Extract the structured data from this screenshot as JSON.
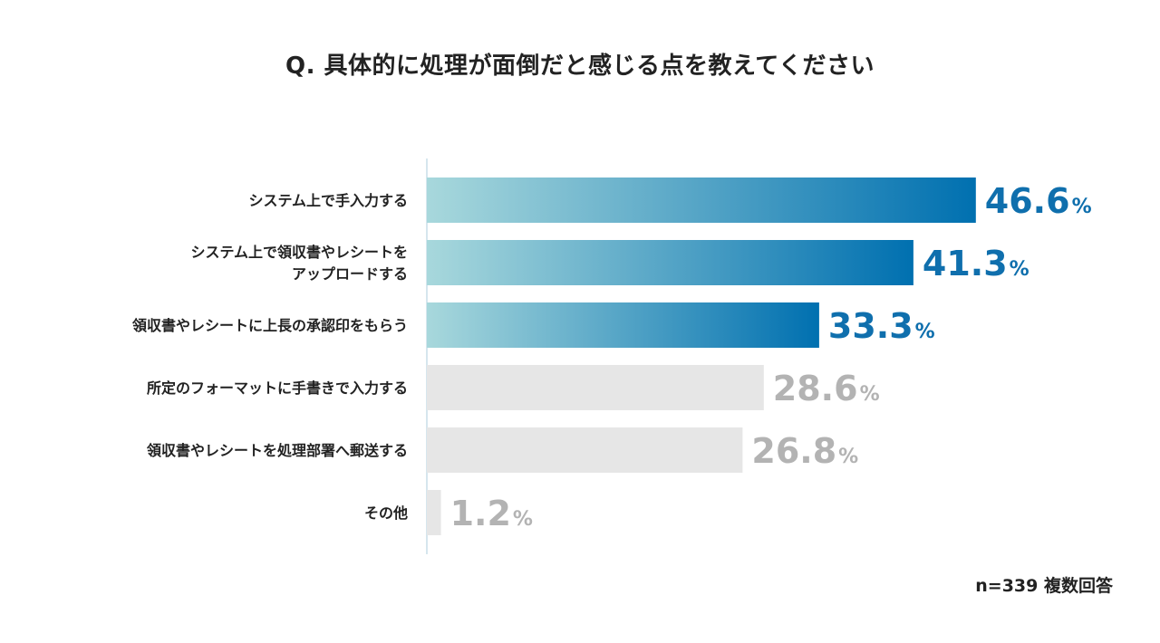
{
  "chart_data": {
    "type": "bar",
    "orientation": "horizontal",
    "title": "Q. 具体的に処理が面倒だと感じる点を教えてください",
    "categories": [
      [
        "システム上で手入力する"
      ],
      [
        "システム上で領収書やレシートを",
        "アップロードする"
      ],
      [
        "領収書やレシートに上長の承認印をもらう"
      ],
      [
        "所定のフォーマットに手書きで入力する"
      ],
      [
        "領収書やレシートを処理部署へ郵送する"
      ],
      [
        "その他"
      ]
    ],
    "values": [
      46.6,
      41.3,
      33.3,
      28.6,
      26.8,
      1.2
    ],
    "value_labels": [
      "46.6",
      "41.3",
      "33.3",
      "28.6",
      "26.8",
      "1.2"
    ],
    "percent_symbol": "%",
    "highlighted_top": 3,
    "xlim": [
      0,
      50
    ],
    "colors": {
      "highlight_start": "#a8d8dc",
      "highlight_end": "#0070b0",
      "highlight_text": "#0f6fad",
      "muted_bar": "#e6e6e6",
      "muted_text": "#b3b3b3",
      "axis": "#c8dde8"
    }
  },
  "footnote": "n=339 複数回答"
}
